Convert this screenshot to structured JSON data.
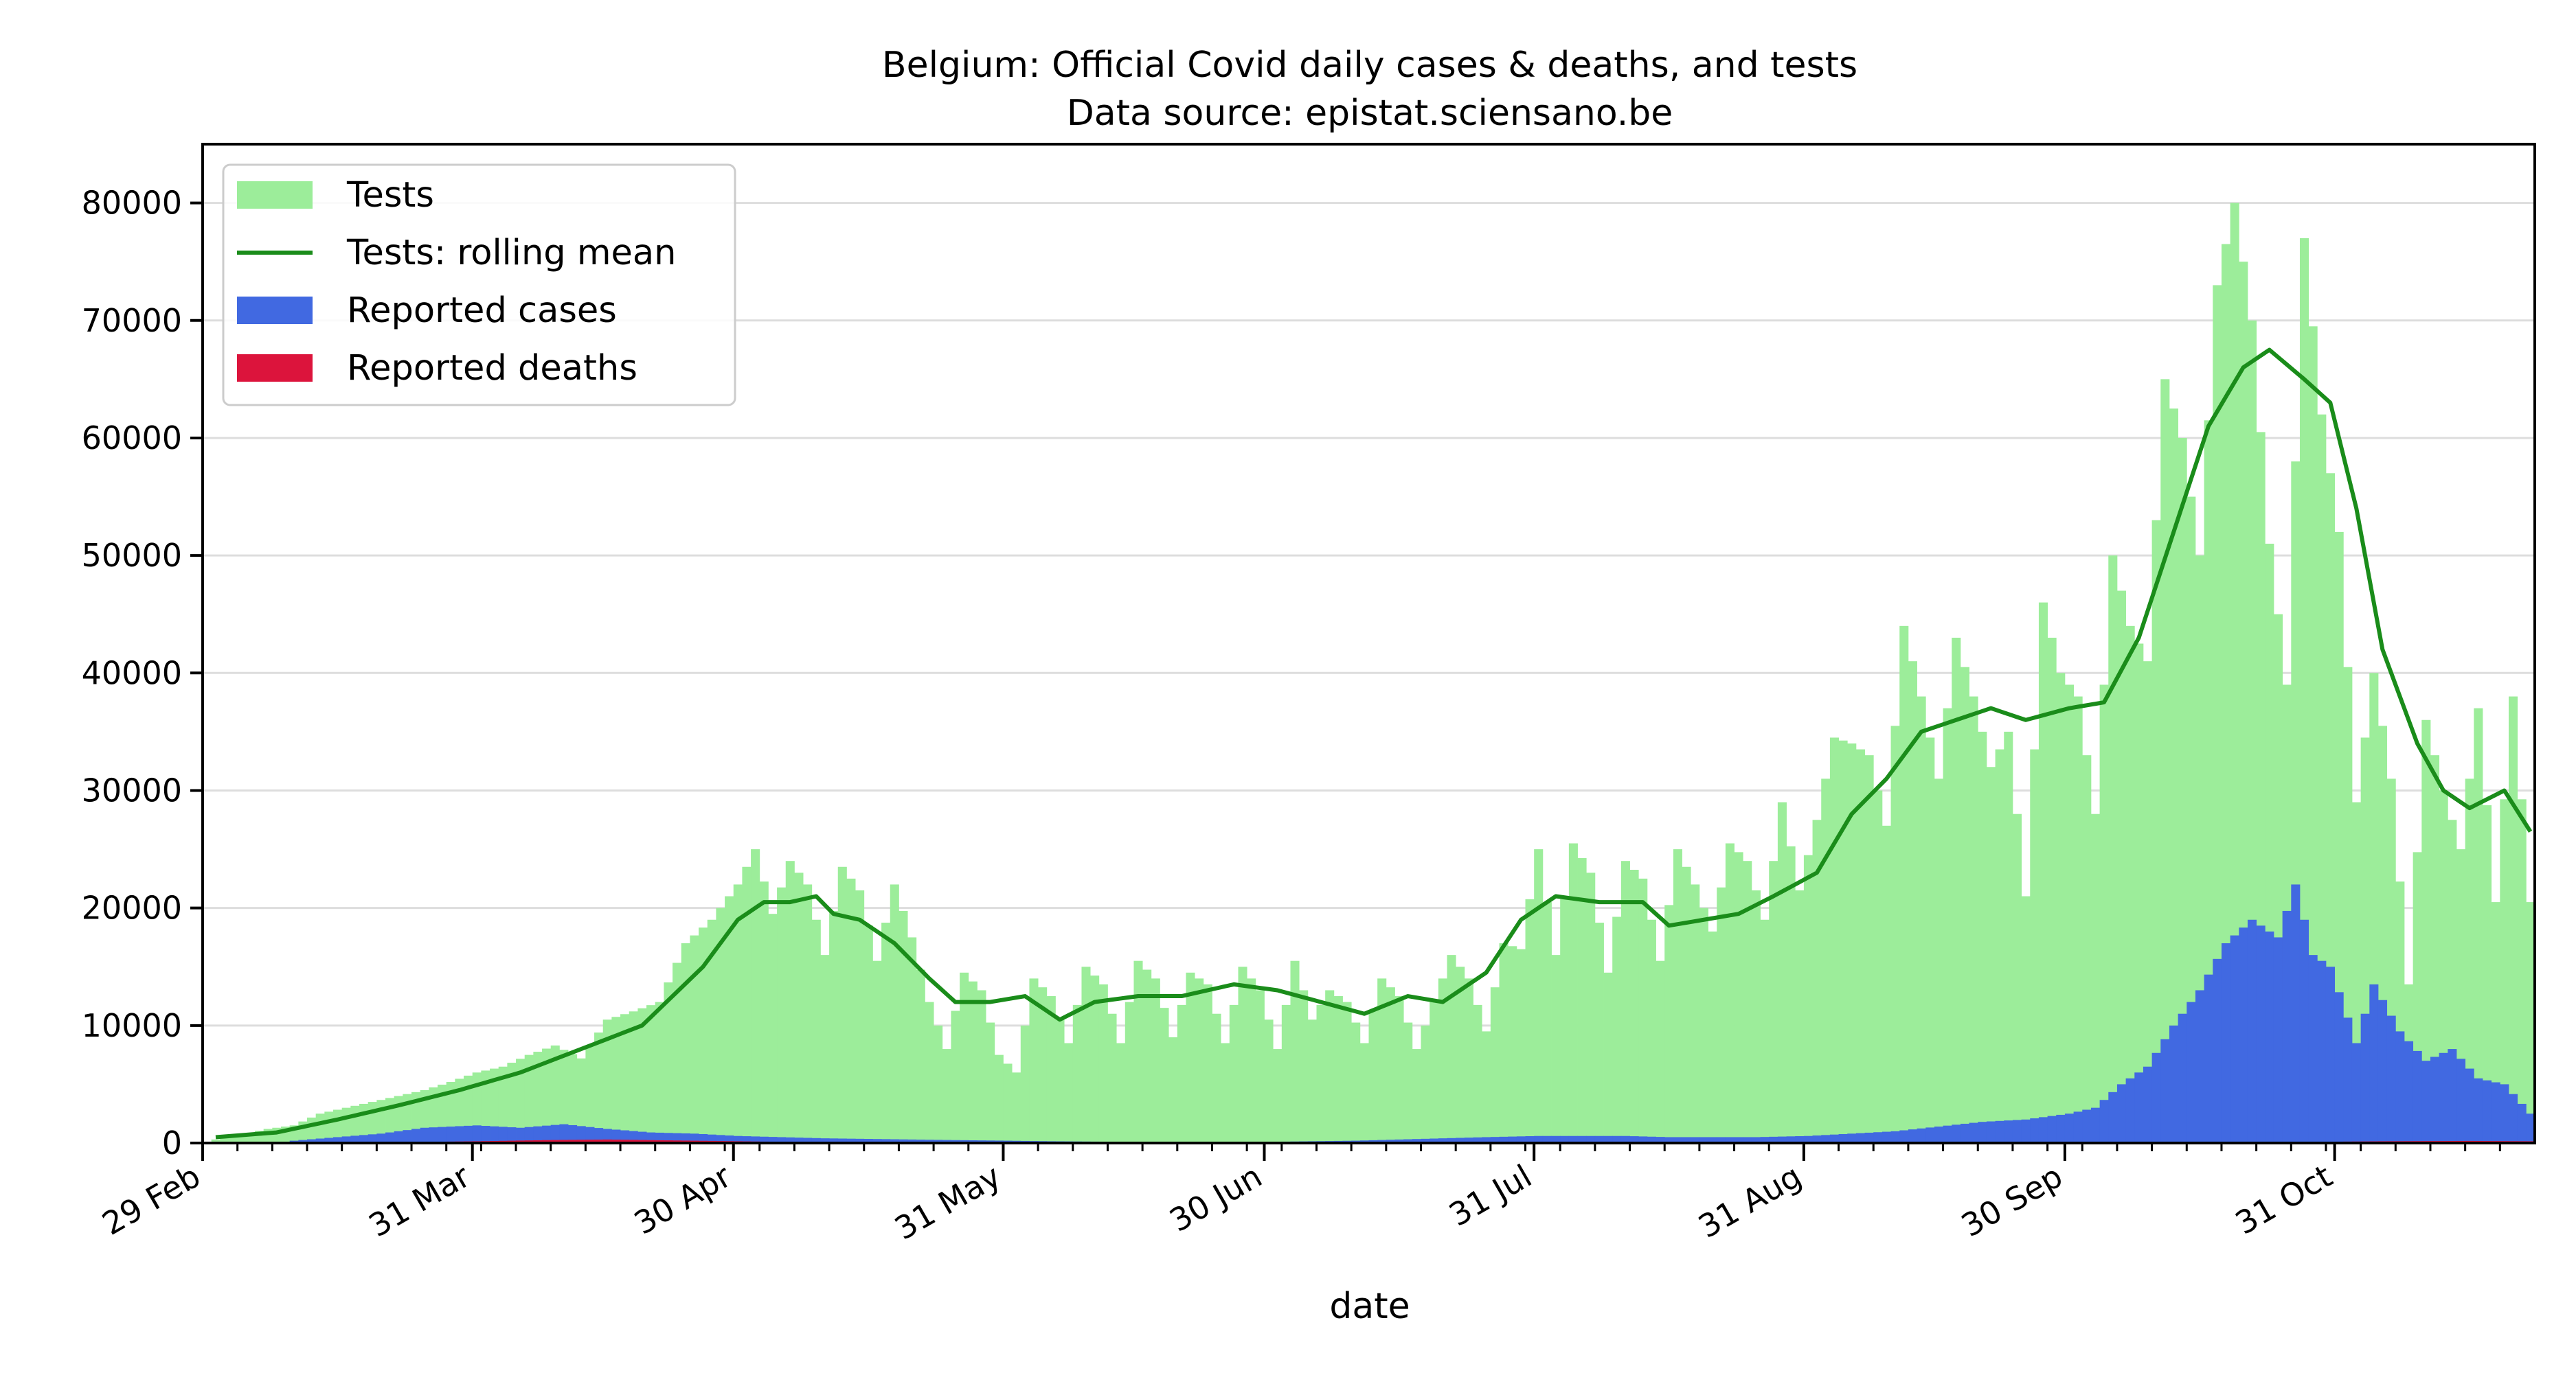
{
  "chart_data": {
    "type": "bar",
    "title": "Belgium: Official Covid daily cases & deaths, and tests",
    "subtitle": "Data source: epistat.sciensano.be",
    "xlabel": "date",
    "ylabel": "",
    "ylim": [
      0,
      85000
    ],
    "yticks": [
      0,
      10000,
      20000,
      30000,
      40000,
      50000,
      60000,
      70000,
      80000
    ],
    "x_start": "2020-02-29",
    "x_end": "2020-11-22",
    "grid": "horizontal",
    "legend_position": "upper left",
    "x_tick_labels": [
      {
        "date": "2020-02-29",
        "label": "29 Feb"
      },
      {
        "date": "2020-03-31",
        "label": "31 Mar"
      },
      {
        "date": "2020-04-30",
        "label": "30 Apr"
      },
      {
        "date": "2020-05-31",
        "label": "31 May"
      },
      {
        "date": "2020-06-30",
        "label": "30 Jun"
      },
      {
        "date": "2020-07-31",
        "label": "31 Jul"
      },
      {
        "date": "2020-08-31",
        "label": "31 Aug"
      },
      {
        "date": "2020-09-30",
        "label": "30 Sep"
      },
      {
        "date": "2020-10-31",
        "label": "31 Oct"
      }
    ],
    "legend": [
      {
        "label": "Tests",
        "kind": "patch",
        "color": "#9ced9a"
      },
      {
        "label": "Tests: rolling mean",
        "kind": "line",
        "color": "#1a8c1a"
      },
      {
        "label": "Reported cases",
        "kind": "patch",
        "color": "#4169e1"
      },
      {
        "label": "Reported deaths",
        "kind": "patch",
        "color": "#dc143c"
      }
    ],
    "series": [
      {
        "name": "Tests",
        "color": "#9ced9a",
        "points": [
          [
            "2020-03-01",
            300
          ],
          [
            "2020-03-04",
            700
          ],
          [
            "2020-03-07",
            1200
          ],
          [
            "2020-03-10",
            1500
          ],
          [
            "2020-03-13",
            2500
          ],
          [
            "2020-03-16",
            3000
          ],
          [
            "2020-03-19",
            3500
          ],
          [
            "2020-03-22",
            4000
          ],
          [
            "2020-03-25",
            4500
          ],
          [
            "2020-03-28",
            5200
          ],
          [
            "2020-03-31",
            6000
          ],
          [
            "2020-04-03",
            6500
          ],
          [
            "2020-04-06",
            7500
          ],
          [
            "2020-04-09",
            8300
          ],
          [
            "2020-04-12",
            7200
          ],
          [
            "2020-04-15",
            10500
          ],
          [
            "2020-04-18",
            11200
          ],
          [
            "2020-04-21",
            12000
          ],
          [
            "2020-04-24",
            17000
          ],
          [
            "2020-04-27",
            19000
          ],
          [
            "2020-04-30",
            22000
          ],
          [
            "2020-05-02",
            25000
          ],
          [
            "2020-05-04",
            19500
          ],
          [
            "2020-05-06",
            24000
          ],
          [
            "2020-05-08",
            22000
          ],
          [
            "2020-05-10",
            16000
          ],
          [
            "2020-05-12",
            23500
          ],
          [
            "2020-05-14",
            21500
          ],
          [
            "2020-05-16",
            15500
          ],
          [
            "2020-05-18",
            22000
          ],
          [
            "2020-05-20",
            17500
          ],
          [
            "2020-05-22",
            12000
          ],
          [
            "2020-05-24",
            8000
          ],
          [
            "2020-05-26",
            14500
          ],
          [
            "2020-05-28",
            13000
          ],
          [
            "2020-05-30",
            7500
          ],
          [
            "2020-06-01",
            6000
          ],
          [
            "2020-06-03",
            14000
          ],
          [
            "2020-06-05",
            12500
          ],
          [
            "2020-06-07",
            8500
          ],
          [
            "2020-06-09",
            15000
          ],
          [
            "2020-06-11",
            13500
          ],
          [
            "2020-06-13",
            8500
          ],
          [
            "2020-06-15",
            15500
          ],
          [
            "2020-06-17",
            14000
          ],
          [
            "2020-06-19",
            9000
          ],
          [
            "2020-06-21",
            14500
          ],
          [
            "2020-06-23",
            13500
          ],
          [
            "2020-06-25",
            8500
          ],
          [
            "2020-06-27",
            15000
          ],
          [
            "2020-06-29",
            13000
          ],
          [
            "2020-07-01",
            8000
          ],
          [
            "2020-07-03",
            15500
          ],
          [
            "2020-07-05",
            10500
          ],
          [
            "2020-07-07",
            13000
          ],
          [
            "2020-07-09",
            12000
          ],
          [
            "2020-07-11",
            8500
          ],
          [
            "2020-07-13",
            14000
          ],
          [
            "2020-07-15",
            12500
          ],
          [
            "2020-07-17",
            8000
          ],
          [
            "2020-07-19",
            12000
          ],
          [
            "2020-07-21",
            16000
          ],
          [
            "2020-07-23",
            14000
          ],
          [
            "2020-07-25",
            9500
          ],
          [
            "2020-07-27",
            17000
          ],
          [
            "2020-07-29",
            16500
          ],
          [
            "2020-07-31",
            25000
          ],
          [
            "2020-08-02",
            16000
          ],
          [
            "2020-08-04",
            25500
          ],
          [
            "2020-08-06",
            23000
          ],
          [
            "2020-08-08",
            14500
          ],
          [
            "2020-08-10",
            24000
          ],
          [
            "2020-08-12",
            22500
          ],
          [
            "2020-08-14",
            15500
          ],
          [
            "2020-08-16",
            25000
          ],
          [
            "2020-08-18",
            22000
          ],
          [
            "2020-08-20",
            18000
          ],
          [
            "2020-08-22",
            25500
          ],
          [
            "2020-08-24",
            24000
          ],
          [
            "2020-08-26",
            19000
          ],
          [
            "2020-08-28",
            29000
          ],
          [
            "2020-08-30",
            21500
          ],
          [
            "2020-09-01",
            27500
          ],
          [
            "2020-09-03",
            34500
          ],
          [
            "2020-09-05",
            34000
          ],
          [
            "2020-09-07",
            33000
          ],
          [
            "2020-09-09",
            27000
          ],
          [
            "2020-09-11",
            44000
          ],
          [
            "2020-09-13",
            38000
          ],
          [
            "2020-09-15",
            31000
          ],
          [
            "2020-09-17",
            43000
          ],
          [
            "2020-09-19",
            38000
          ],
          [
            "2020-09-21",
            32000
          ],
          [
            "2020-09-23",
            35000
          ],
          [
            "2020-09-25",
            21000
          ],
          [
            "2020-09-27",
            46000
          ],
          [
            "2020-09-29",
            40000
          ],
          [
            "2020-10-01",
            38000
          ],
          [
            "2020-10-03",
            28000
          ],
          [
            "2020-10-05",
            50000
          ],
          [
            "2020-10-07",
            44000
          ],
          [
            "2020-10-09",
            41000
          ],
          [
            "2020-10-11",
            65000
          ],
          [
            "2020-10-13",
            60000
          ],
          [
            "2020-10-15",
            50000
          ],
          [
            "2020-10-17",
            73000
          ],
          [
            "2020-10-19",
            80000
          ],
          [
            "2020-10-21",
            70000
          ],
          [
            "2020-10-23",
            51000
          ],
          [
            "2020-10-25",
            39000
          ],
          [
            "2020-10-27",
            77000
          ],
          [
            "2020-10-29",
            62000
          ],
          [
            "2020-10-31",
            52000
          ],
          [
            "2020-11-02",
            29000
          ],
          [
            "2020-11-04",
            40000
          ],
          [
            "2020-11-06",
            31000
          ],
          [
            "2020-11-08",
            13500
          ],
          [
            "2020-11-10",
            36000
          ],
          [
            "2020-11-12",
            30000
          ],
          [
            "2020-11-14",
            25000
          ],
          [
            "2020-11-16",
            37000
          ],
          [
            "2020-11-18",
            20500
          ],
          [
            "2020-11-20",
            38000
          ],
          [
            "2020-11-22",
            20500
          ]
        ]
      },
      {
        "name": "Tests: rolling mean",
        "color": "#1a8c1a",
        "points": [
          [
            "2020-03-01",
            500
          ],
          [
            "2020-03-08",
            900
          ],
          [
            "2020-03-15",
            2000
          ],
          [
            "2020-03-22",
            3200
          ],
          [
            "2020-03-29",
            4500
          ],
          [
            "2020-04-05",
            6000
          ],
          [
            "2020-04-12",
            8000
          ],
          [
            "2020-04-19",
            10000
          ],
          [
            "2020-04-26",
            15000
          ],
          [
            "2020-04-30",
            19000
          ],
          [
            "2020-05-03",
            20500
          ],
          [
            "2020-05-06",
            20500
          ],
          [
            "2020-05-09",
            21000
          ],
          [
            "2020-05-11",
            19500
          ],
          [
            "2020-05-14",
            19000
          ],
          [
            "2020-05-18",
            17000
          ],
          [
            "2020-05-22",
            14000
          ],
          [
            "2020-05-25",
            12000
          ],
          [
            "2020-05-29",
            12000
          ],
          [
            "2020-06-02",
            12500
          ],
          [
            "2020-06-06",
            10500
          ],
          [
            "2020-06-10",
            12000
          ],
          [
            "2020-06-15",
            12500
          ],
          [
            "2020-06-20",
            12500
          ],
          [
            "2020-06-26",
            13500
          ],
          [
            "2020-07-01",
            13000
          ],
          [
            "2020-07-06",
            12000
          ],
          [
            "2020-07-11",
            11000
          ],
          [
            "2020-07-16",
            12500
          ],
          [
            "2020-07-20",
            12000
          ],
          [
            "2020-07-25",
            14500
          ],
          [
            "2020-07-29",
            19000
          ],
          [
            "2020-08-02",
            21000
          ],
          [
            "2020-08-07",
            20500
          ],
          [
            "2020-08-12",
            20500
          ],
          [
            "2020-08-15",
            18500
          ],
          [
            "2020-08-19",
            19000
          ],
          [
            "2020-08-23",
            19500
          ],
          [
            "2020-08-27",
            21000
          ],
          [
            "2020-09-01",
            23000
          ],
          [
            "2020-09-05",
            28000
          ],
          [
            "2020-09-09",
            31000
          ],
          [
            "2020-09-13",
            35000
          ],
          [
            "2020-09-17",
            36000
          ],
          [
            "2020-09-21",
            37000
          ],
          [
            "2020-09-25",
            36000
          ],
          [
            "2020-09-30",
            37000
          ],
          [
            "2020-10-04",
            37500
          ],
          [
            "2020-10-08",
            43000
          ],
          [
            "2020-10-12",
            52000
          ],
          [
            "2020-10-16",
            61000
          ],
          [
            "2020-10-20",
            66000
          ],
          [
            "2020-10-23",
            67500
          ],
          [
            "2020-10-27",
            65000
          ],
          [
            "2020-10-30",
            63000
          ],
          [
            "2020-11-02",
            54000
          ],
          [
            "2020-11-05",
            42000
          ],
          [
            "2020-11-09",
            34000
          ],
          [
            "2020-11-12",
            30000
          ],
          [
            "2020-11-15",
            28500
          ],
          [
            "2020-11-19",
            30000
          ],
          [
            "2020-11-22",
            26500
          ]
        ]
      },
      {
        "name": "Reported cases",
        "color": "#4169e1",
        "points": [
          [
            "2020-03-10",
            200
          ],
          [
            "2020-03-15",
            500
          ],
          [
            "2020-03-20",
            800
          ],
          [
            "2020-03-25",
            1300
          ],
          [
            "2020-03-31",
            1500
          ],
          [
            "2020-04-05",
            1300
          ],
          [
            "2020-04-10",
            1600
          ],
          [
            "2020-04-15",
            1200
          ],
          [
            "2020-04-20",
            900
          ],
          [
            "2020-04-25",
            800
          ],
          [
            "2020-04-30",
            600
          ],
          [
            "2020-05-05",
            500
          ],
          [
            "2020-05-10",
            400
          ],
          [
            "2020-05-15",
            350
          ],
          [
            "2020-05-20",
            300
          ],
          [
            "2020-05-25",
            250
          ],
          [
            "2020-05-31",
            200
          ],
          [
            "2020-06-05",
            150
          ],
          [
            "2020-06-10",
            120
          ],
          [
            "2020-06-15",
            100
          ],
          [
            "2020-06-20",
            100
          ],
          [
            "2020-06-25",
            100
          ],
          [
            "2020-06-30",
            100
          ],
          [
            "2020-07-05",
            150
          ],
          [
            "2020-07-10",
            200
          ],
          [
            "2020-07-15",
            300
          ],
          [
            "2020-07-20",
            400
          ],
          [
            "2020-07-25",
            500
          ],
          [
            "2020-07-31",
            600
          ],
          [
            "2020-08-05",
            600
          ],
          [
            "2020-08-10",
            600
          ],
          [
            "2020-08-15",
            500
          ],
          [
            "2020-08-20",
            500
          ],
          [
            "2020-08-25",
            500
          ],
          [
            "2020-08-31",
            600
          ],
          [
            "2020-09-05",
            800
          ],
          [
            "2020-09-10",
            1000
          ],
          [
            "2020-09-15",
            1400
          ],
          [
            "2020-09-20",
            1800
          ],
          [
            "2020-09-25",
            2000
          ],
          [
            "2020-09-30",
            2500
          ],
          [
            "2020-10-03",
            3000
          ],
          [
            "2020-10-06",
            5000
          ],
          [
            "2020-10-09",
            6500
          ],
          [
            "2020-10-12",
            10000
          ],
          [
            "2020-10-15",
            13000
          ],
          [
            "2020-10-18",
            17000
          ],
          [
            "2020-10-21",
            19000
          ],
          [
            "2020-10-24",
            17500
          ],
          [
            "2020-10-26",
            22000
          ],
          [
            "2020-10-28",
            16000
          ],
          [
            "2020-10-30",
            15000
          ],
          [
            "2020-11-02",
            8500
          ],
          [
            "2020-11-04",
            13500
          ],
          [
            "2020-11-07",
            9500
          ],
          [
            "2020-11-10",
            7000
          ],
          [
            "2020-11-13",
            8000
          ],
          [
            "2020-11-16",
            5500
          ],
          [
            "2020-11-19",
            5000
          ],
          [
            "2020-11-22",
            2500
          ]
        ]
      },
      {
        "name": "Reported deaths",
        "color": "#dc143c",
        "points": [
          [
            "2020-03-20",
            50
          ],
          [
            "2020-03-31",
            150
          ],
          [
            "2020-04-08",
            250
          ],
          [
            "2020-04-15",
            300
          ],
          [
            "2020-04-25",
            200
          ],
          [
            "2020-05-05",
            100
          ],
          [
            "2020-05-20",
            40
          ],
          [
            "2020-06-10",
            15
          ],
          [
            "2020-07-15",
            5
          ],
          [
            "2020-08-15",
            8
          ],
          [
            "2020-09-15",
            10
          ],
          [
            "2020-10-10",
            30
          ],
          [
            "2020-10-25",
            80
          ],
          [
            "2020-11-05",
            150
          ],
          [
            "2020-11-15",
            180
          ],
          [
            "2020-11-22",
            150
          ]
        ]
      }
    ]
  }
}
